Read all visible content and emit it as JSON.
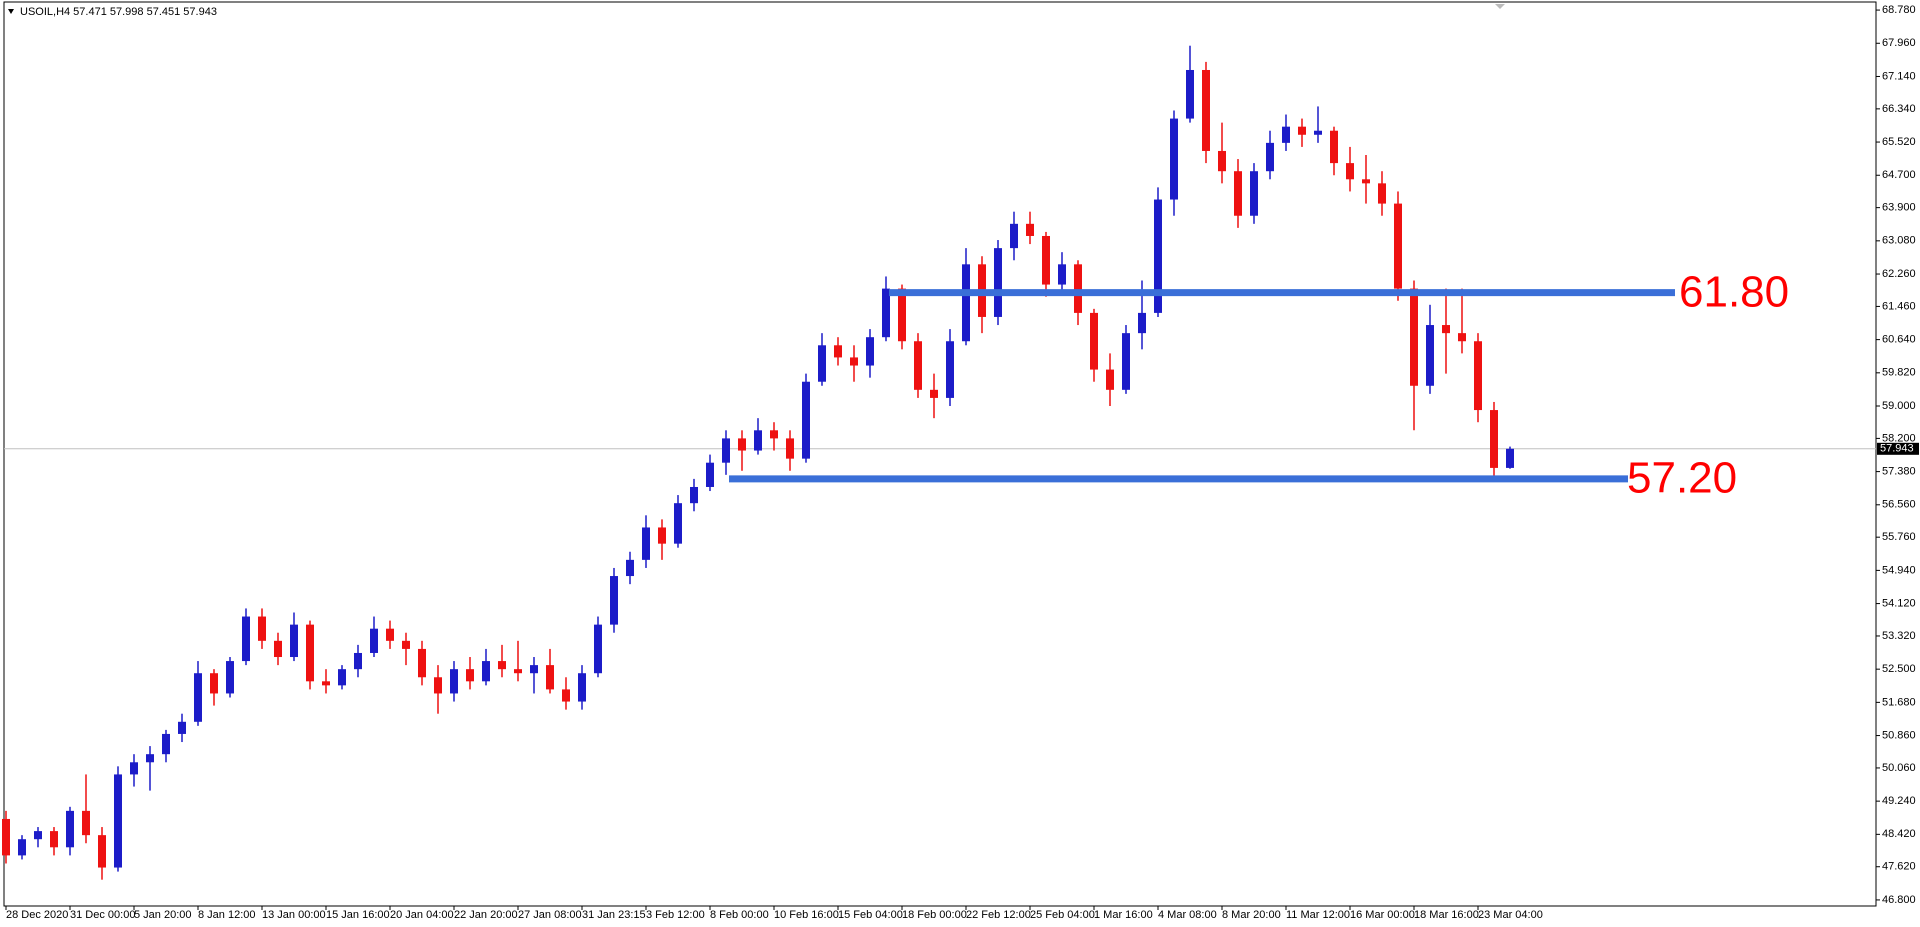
{
  "chart_data": {
    "type": "candlestick",
    "title": "USOIL,H4  57.471 57.998 57.451 57.943",
    "categories": [
      "28 Dec 2020",
      null,
      null,
      null,
      "31 Dec 00:00",
      null,
      null,
      null,
      "5 Jan 20:00",
      null,
      null,
      null,
      "8 Jan 12:00",
      null,
      null,
      null,
      "13 Jan 00:00",
      null,
      null,
      null,
      "15 Jan 16:00",
      null,
      null,
      null,
      "20 Jan 04:00",
      null,
      null,
      null,
      "22 Jan 20:00",
      null,
      null,
      null,
      "27 Jan 08:00",
      null,
      null,
      null,
      "31 Jan 23:15",
      null,
      null,
      null,
      "3 Feb 12:00",
      null,
      null,
      null,
      "8 Feb 00:00",
      null,
      null,
      null,
      "10 Feb 16:00",
      null,
      null,
      null,
      "15 Feb 04:00",
      null,
      null,
      null,
      "18 Feb 00:00",
      null,
      null,
      null,
      "22 Feb 12:00",
      null,
      null,
      null,
      "25 Feb 04:00",
      null,
      null,
      null,
      "1 Mar 16:00",
      null,
      null,
      null,
      "4 Mar 08:00",
      null,
      null,
      null,
      "8 Mar 20:00",
      null,
      null,
      null,
      "11 Mar 12:00",
      null,
      null,
      null,
      "16 Mar 00:00",
      null,
      null,
      null,
      "18 Mar 16:00",
      null,
      null,
      null,
      "23 Mar 04:00",
      null,
      null
    ],
    "open": [
      48.8,
      47.9,
      48.3,
      48.5,
      48.1,
      49.0,
      48.4,
      47.6,
      49.9,
      50.2,
      50.4,
      50.9,
      51.2,
      52.4,
      51.9,
      52.7,
      53.8,
      53.2,
      52.8,
      53.6,
      52.2,
      52.1,
      52.5,
      52.9,
      53.5,
      53.2,
      53.0,
      52.3,
      51.9,
      52.5,
      52.2,
      52.7,
      52.5,
      52.4,
      52.6,
      52.0,
      51.7,
      52.4,
      53.6,
      54.8,
      55.2,
      56.0,
      55.6,
      56.6,
      57.0,
      57.6,
      58.2,
      57.9,
      58.4,
      58.2,
      57.7,
      59.6,
      60.5,
      60.2,
      60.0,
      60.7,
      61.9,
      60.6,
      59.4,
      59.2,
      60.6,
      62.5,
      61.2,
      62.9,
      63.5,
      63.2,
      62.0,
      62.5,
      61.3,
      59.9,
      59.4,
      60.8,
      61.3,
      64.1,
      66.1,
      67.3,
      65.3,
      64.8,
      63.7,
      64.8,
      65.5,
      65.9,
      65.7,
      65.8,
      65.0,
      64.6,
      64.5,
      64.0,
      61.9,
      59.5,
      61.0,
      60.8,
      60.6,
      58.9,
      57.471
    ],
    "high": [
      49.0,
      48.4,
      48.6,
      48.6,
      49.1,
      49.9,
      48.6,
      50.1,
      50.4,
      50.6,
      51.0,
      51.4,
      52.7,
      52.5,
      52.8,
      54.0,
      54.0,
      53.4,
      53.9,
      53.7,
      52.5,
      52.6,
      53.1,
      53.8,
      53.7,
      53.4,
      53.2,
      52.6,
      52.7,
      52.8,
      53.0,
      53.1,
      53.2,
      52.8,
      53.0,
      52.3,
      52.6,
      53.8,
      55.0,
      55.4,
      56.3,
      56.2,
      56.8,
      57.2,
      57.8,
      58.4,
      58.4,
      58.7,
      58.6,
      58.4,
      59.8,
      60.8,
      60.7,
      60.5,
      60.9,
      62.2,
      62.0,
      60.8,
      59.8,
      60.9,
      62.9,
      62.7,
      63.1,
      63.8,
      63.8,
      63.3,
      62.8,
      62.6,
      61.4,
      60.3,
      61.0,
      62.1,
      64.4,
      66.3,
      67.9,
      67.5,
      66.0,
      65.1,
      65.0,
      65.8,
      66.2,
      66.1,
      66.4,
      65.9,
      65.4,
      65.2,
      64.8,
      64.3,
      62.1,
      61.5,
      61.9,
      61.9,
      60.8,
      59.1,
      57.998
    ],
    "low": [
      47.7,
      47.8,
      48.1,
      47.9,
      47.9,
      48.2,
      47.3,
      47.5,
      49.6,
      49.5,
      50.2,
      50.7,
      51.1,
      51.6,
      51.8,
      52.6,
      53.0,
      52.6,
      52.7,
      52.0,
      51.9,
      52.0,
      52.3,
      52.8,
      53.0,
      52.6,
      52.1,
      51.4,
      51.7,
      52.0,
      52.1,
      52.3,
      52.2,
      51.9,
      51.9,
      51.5,
      51.5,
      52.3,
      53.4,
      54.6,
      55.0,
      55.2,
      55.5,
      56.4,
      56.9,
      57.3,
      57.4,
      57.8,
      57.9,
      57.4,
      57.6,
      59.5,
      60.0,
      59.6,
      59.7,
      60.6,
      60.4,
      59.2,
      58.7,
      59.0,
      60.5,
      60.8,
      61.0,
      62.6,
      63.0,
      61.7,
      61.8,
      61.0,
      59.6,
      59.0,
      59.3,
      60.4,
      61.2,
      63.7,
      66.0,
      65.0,
      64.5,
      63.4,
      63.5,
      64.6,
      65.3,
      65.4,
      65.5,
      64.7,
      64.3,
      64.0,
      63.7,
      61.6,
      58.4,
      59.3,
      59.8,
      60.3,
      58.6,
      57.2,
      57.451
    ],
    "close": [
      47.9,
      48.3,
      48.5,
      48.1,
      49.0,
      48.4,
      47.6,
      49.9,
      50.2,
      50.4,
      50.9,
      51.2,
      52.4,
      51.9,
      52.7,
      53.8,
      53.2,
      52.8,
      53.6,
      52.2,
      52.1,
      52.5,
      52.9,
      53.5,
      53.2,
      53.0,
      52.3,
      51.9,
      52.5,
      52.2,
      52.7,
      52.5,
      52.4,
      52.6,
      52.0,
      51.7,
      52.4,
      53.6,
      54.8,
      55.2,
      56.0,
      55.6,
      56.6,
      57.0,
      57.6,
      58.2,
      57.9,
      58.4,
      58.2,
      57.7,
      59.6,
      60.5,
      60.2,
      60.0,
      60.7,
      61.9,
      60.6,
      59.4,
      59.2,
      60.6,
      62.5,
      61.2,
      62.9,
      63.5,
      63.2,
      62.0,
      62.5,
      61.3,
      59.9,
      59.4,
      60.8,
      61.3,
      64.1,
      66.1,
      67.3,
      65.3,
      64.8,
      63.7,
      64.8,
      65.5,
      65.9,
      65.7,
      65.8,
      65.0,
      64.6,
      64.5,
      64.0,
      61.9,
      59.5,
      61.0,
      60.8,
      60.6,
      58.9,
      57.471,
      57.943
    ],
    "up_color": "#1c1cc8",
    "down_color": "#ee1111",
    "ylim": [
      46.65,
      68.93
    ],
    "yticks": [
      {
        "value": 68.78,
        "label": "68.780"
      },
      {
        "value": 67.96,
        "label": "67.960"
      },
      {
        "value": 67.14,
        "label": "67.140"
      },
      {
        "value": 66.34,
        "label": "66.340"
      },
      {
        "value": 65.52,
        "label": "65.520"
      },
      {
        "value": 64.7,
        "label": "64.700"
      },
      {
        "value": 63.9,
        "label": "63.900"
      },
      {
        "value": 63.08,
        "label": "63.080"
      },
      {
        "value": 62.26,
        "label": "62.260"
      },
      {
        "value": 61.46,
        "label": "61.460"
      },
      {
        "value": 60.64,
        "label": "60.640"
      },
      {
        "value": 59.82,
        "label": "59.820"
      },
      {
        "value": 59,
        "label": "59.000"
      },
      {
        "value": 58.2,
        "label": "58.200"
      },
      {
        "value": 57.38,
        "label": "57.380"
      },
      {
        "value": 56.56,
        "label": "56.560"
      },
      {
        "value": 55.76,
        "label": "55.760"
      },
      {
        "value": 54.94,
        "label": "54.940"
      },
      {
        "value": 54.12,
        "label": "54.120"
      },
      {
        "value": 53.32,
        "label": "53.320"
      },
      {
        "value": 52.5,
        "label": "52.500"
      },
      {
        "value": 51.68,
        "label": "51.680"
      },
      {
        "value": 50.86,
        "label": "50.860"
      },
      {
        "value": 50.06,
        "label": "50.060"
      },
      {
        "value": 49.24,
        "label": "49.240"
      },
      {
        "value": 48.42,
        "label": "48.420"
      },
      {
        "value": 47.62,
        "label": "47.620"
      },
      {
        "value": 46.8,
        "label": "46.800"
      }
    ],
    "current_price": {
      "value": 57.943,
      "label": "57.943"
    },
    "levels": [
      {
        "value": 61.8,
        "label": "61.80",
        "color": "#3a6fd8"
      },
      {
        "value": 57.2,
        "label": "57.20",
        "color": "#3a6fd8"
      }
    ]
  }
}
